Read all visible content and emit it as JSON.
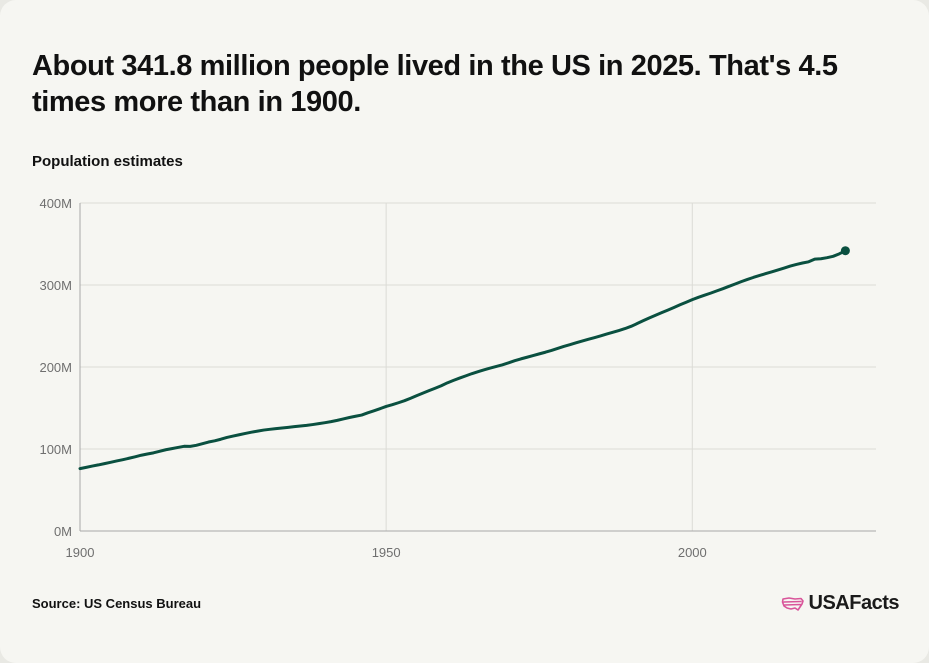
{
  "header": {
    "title": "About 341.8 million people lived in the US in 2025. That's 4.5 times more than in 1900.",
    "subtitle": "Population estimates"
  },
  "footer": {
    "source": "Source: US Census Bureau",
    "logo": "USAFacts",
    "logo_icon": "us-flag-map-icon"
  },
  "colors": {
    "line": "#0a5040",
    "grid": "#dcdcd6",
    "axis": "#a8a8a8",
    "logo_icon": "#d9559a"
  },
  "chart_data": {
    "type": "line",
    "title": "Population estimates",
    "xlabel": "",
    "ylabel": "",
    "xlim": [
      1900,
      2030
    ],
    "ylim": [
      0,
      400
    ],
    "grid": true,
    "legend": "none",
    "x_ticks": [
      1900,
      1950,
      2000
    ],
    "x_tick_labels": [
      "1900",
      "1950",
      "2000"
    ],
    "y_ticks": [
      0,
      100,
      200,
      300,
      400
    ],
    "y_tick_labels": [
      "0M",
      "100M",
      "200M",
      "300M",
      "400M"
    ],
    "series": [
      {
        "name": "",
        "units": "millions",
        "x": [
          1900,
          1901,
          1902,
          1903,
          1904,
          1905,
          1906,
          1907,
          1908,
          1909,
          1910,
          1911,
          1912,
          1913,
          1914,
          1915,
          1916,
          1917,
          1918,
          1919,
          1920,
          1921,
          1922,
          1923,
          1924,
          1925,
          1926,
          1927,
          1928,
          1929,
          1930,
          1931,
          1932,
          1933,
          1934,
          1935,
          1936,
          1937,
          1938,
          1939,
          1940,
          1941,
          1942,
          1943,
          1944,
          1945,
          1946,
          1947,
          1948,
          1949,
          1950,
          1951,
          1952,
          1953,
          1954,
          1955,
          1956,
          1957,
          1958,
          1959,
          1960,
          1961,
          1962,
          1963,
          1964,
          1965,
          1966,
          1967,
          1968,
          1969,
          1970,
          1971,
          1972,
          1973,
          1974,
          1975,
          1976,
          1977,
          1978,
          1979,
          1980,
          1981,
          1982,
          1983,
          1984,
          1985,
          1986,
          1987,
          1988,
          1989,
          1990,
          1991,
          1992,
          1993,
          1994,
          1995,
          1996,
          1997,
          1998,
          1999,
          2000,
          2001,
          2002,
          2003,
          2004,
          2005,
          2006,
          2007,
          2008,
          2009,
          2010,
          2011,
          2012,
          2013,
          2014,
          2015,
          2016,
          2017,
          2018,
          2019,
          2020,
          2021,
          2022,
          2023,
          2024,
          2025
        ],
        "values": [
          76.1,
          77.6,
          79.2,
          80.6,
          82.2,
          83.8,
          85.4,
          87.0,
          88.7,
          90.5,
          92.4,
          93.9,
          95.3,
          97.2,
          99.1,
          100.5,
          101.9,
          103.3,
          103.2,
          104.5,
          106.5,
          108.5,
          110.0,
          111.9,
          114.1,
          115.8,
          117.4,
          119.0,
          120.5,
          121.8,
          123.1,
          124.0,
          124.8,
          125.6,
          126.4,
          127.3,
          128.1,
          128.8,
          129.8,
          130.9,
          132.1,
          133.4,
          134.9,
          136.7,
          138.4,
          139.9,
          141.4,
          144.1,
          146.6,
          149.2,
          151.9,
          154.0,
          156.4,
          158.9,
          161.9,
          165.1,
          168.1,
          171.2,
          174.1,
          177.1,
          180.7,
          183.7,
          186.5,
          189.2,
          191.9,
          194.3,
          196.6,
          198.7,
          200.7,
          202.7,
          205.1,
          207.7,
          209.9,
          211.9,
          213.9,
          216.0,
          218.0,
          220.2,
          222.6,
          225.1,
          227.2,
          229.5,
          231.7,
          233.8,
          235.8,
          237.9,
          240.1,
          242.3,
          244.5,
          246.8,
          249.6,
          253.0,
          256.5,
          259.9,
          263.1,
          266.3,
          269.4,
          272.6,
          275.9,
          279.0,
          282.2,
          285.0,
          287.6,
          290.1,
          292.8,
          295.5,
          298.4,
          301.2,
          304.1,
          306.8,
          309.3,
          311.6,
          313.9,
          316.1,
          318.4,
          320.7,
          323.1,
          325.1,
          326.8,
          328.3,
          331.5,
          332.0,
          333.3,
          335.0,
          338.0,
          341.8
        ]
      }
    ]
  }
}
